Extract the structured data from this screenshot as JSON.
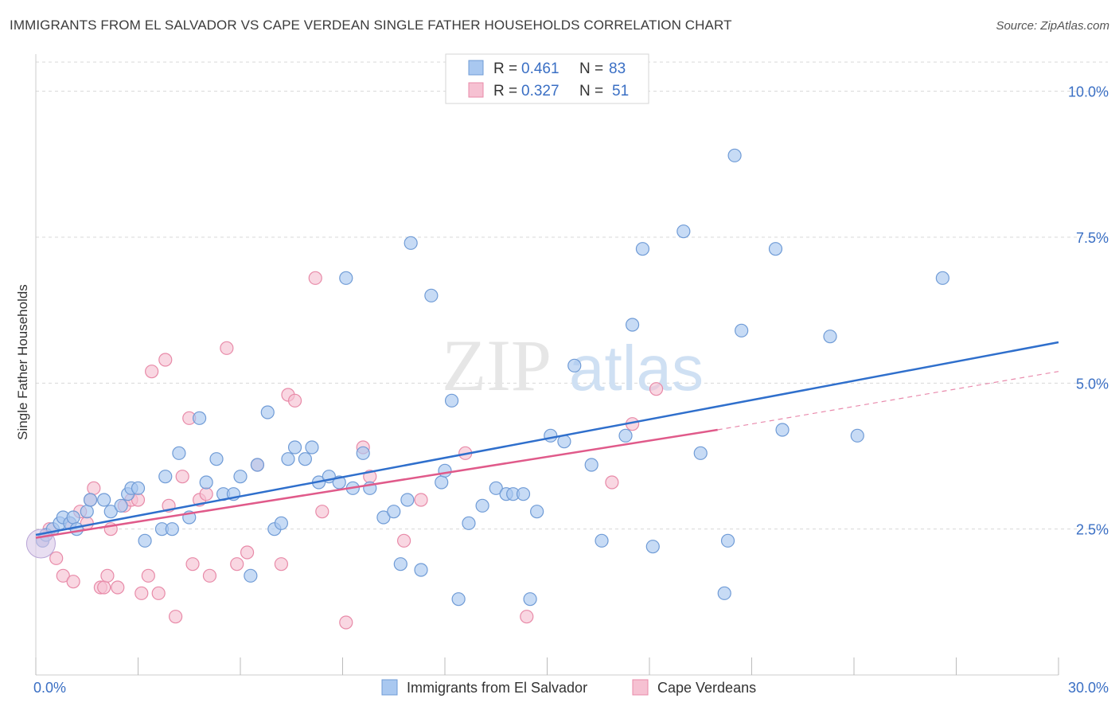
{
  "title": "IMMIGRANTS FROM EL SALVADOR VS CAPE VERDEAN SINGLE FATHER HOUSEHOLDS CORRELATION CHART",
  "source": "Source: ZipAtlas.com",
  "watermark": {
    "zip": "ZIP",
    "atlas": "atlas"
  },
  "legend": {
    "rows": [
      {
        "r_label": "R =",
        "r_value": "0.461",
        "n_label": "N =",
        "n_value": "83"
      },
      {
        "r_label": "R =",
        "r_value": "0.327",
        "n_label": "N =",
        "n_value": "51"
      }
    ]
  },
  "bottom_legend": [
    "Immigrants from El Salvador",
    "Cape Verdeans"
  ],
  "colors": {
    "blue_fill": "#a9c8f0",
    "blue_stroke": "#6f9bd6",
    "blue_line": "#2f6fcc",
    "pink_fill": "#f6c1d2",
    "pink_stroke": "#e88aa8",
    "pink_line": "#e05a8a",
    "axis_text": "#3a6fc4",
    "grid": "#d8d8d8"
  },
  "chart_data": {
    "type": "scatter",
    "xlabel": "",
    "ylabel": "Single Father Households",
    "xlim": [
      0,
      30
    ],
    "ylim": [
      0,
      10.5
    ],
    "x_ticks": [
      "0.0%",
      "30.0%"
    ],
    "y_ticks": [
      "2.5%",
      "5.0%",
      "7.5%",
      "10.0%"
    ],
    "grid": "horizontal dashed",
    "legend_position": "top-center",
    "series": [
      {
        "name": "Immigrants from El Salvador",
        "points": [
          [
            0.2,
            2.3
          ],
          [
            0.3,
            2.4
          ],
          [
            0.5,
            2.5
          ],
          [
            0.7,
            2.6
          ],
          [
            0.8,
            2.7
          ],
          [
            1.0,
            2.6
          ],
          [
            1.1,
            2.7
          ],
          [
            1.2,
            2.5
          ],
          [
            1.5,
            2.8
          ],
          [
            1.6,
            3.0
          ],
          [
            2.0,
            3.0
          ],
          [
            2.2,
            2.8
          ],
          [
            2.5,
            2.9
          ],
          [
            2.7,
            3.1
          ],
          [
            2.8,
            3.2
          ],
          [
            3.0,
            3.2
          ],
          [
            3.2,
            2.3
          ],
          [
            3.7,
            2.5
          ],
          [
            3.8,
            3.4
          ],
          [
            4.0,
            2.5
          ],
          [
            4.2,
            3.8
          ],
          [
            4.5,
            2.7
          ],
          [
            4.8,
            4.4
          ],
          [
            5.0,
            3.3
          ],
          [
            5.3,
            3.7
          ],
          [
            5.5,
            3.1
          ],
          [
            5.8,
            3.1
          ],
          [
            6.0,
            3.4
          ],
          [
            6.3,
            1.7
          ],
          [
            6.5,
            3.6
          ],
          [
            6.8,
            4.5
          ],
          [
            7.0,
            2.5
          ],
          [
            7.2,
            2.6
          ],
          [
            7.4,
            3.7
          ],
          [
            7.6,
            3.9
          ],
          [
            7.9,
            3.7
          ],
          [
            8.1,
            3.9
          ],
          [
            8.3,
            3.3
          ],
          [
            8.6,
            3.4
          ],
          [
            8.9,
            3.3
          ],
          [
            9.1,
            6.8
          ],
          [
            9.3,
            3.2
          ],
          [
            9.6,
            3.8
          ],
          [
            9.8,
            3.2
          ],
          [
            10.2,
            2.7
          ],
          [
            10.5,
            2.8
          ],
          [
            10.7,
            1.9
          ],
          [
            10.9,
            3.0
          ],
          [
            11.0,
            7.4
          ],
          [
            11.3,
            1.8
          ],
          [
            11.6,
            6.5
          ],
          [
            11.9,
            3.3
          ],
          [
            12.0,
            3.5
          ],
          [
            12.2,
            4.7
          ],
          [
            12.4,
            1.3
          ],
          [
            12.7,
            2.6
          ],
          [
            13.1,
            2.9
          ],
          [
            13.5,
            3.2
          ],
          [
            13.8,
            3.1
          ],
          [
            14.0,
            3.1
          ],
          [
            14.3,
            3.1
          ],
          [
            14.5,
            1.3
          ],
          [
            14.7,
            2.8
          ],
          [
            15.1,
            4.1
          ],
          [
            15.5,
            4.0
          ],
          [
            15.8,
            5.3
          ],
          [
            16.3,
            3.6
          ],
          [
            16.6,
            2.3
          ],
          [
            17.3,
            4.1
          ],
          [
            17.5,
            6.0
          ],
          [
            17.8,
            7.3
          ],
          [
            18.1,
            2.2
          ],
          [
            19.0,
            7.6
          ],
          [
            19.5,
            3.8
          ],
          [
            20.2,
            1.4
          ],
          [
            20.3,
            2.3
          ],
          [
            20.5,
            8.9
          ],
          [
            20.7,
            5.9
          ],
          [
            21.7,
            7.3
          ],
          [
            21.9,
            4.2
          ],
          [
            23.3,
            5.8
          ],
          [
            24.1,
            4.1
          ],
          [
            26.6,
            6.8
          ]
        ],
        "trend": {
          "x0": 0,
          "y0": 2.4,
          "x1": 30,
          "y1": 5.7
        }
      },
      {
        "name": "Cape Verdeans",
        "points": [
          [
            0.2,
            2.3
          ],
          [
            0.3,
            2.4
          ],
          [
            0.4,
            2.5
          ],
          [
            0.6,
            2.0
          ],
          [
            0.8,
            1.7
          ],
          [
            1.0,
            2.6
          ],
          [
            1.1,
            1.6
          ],
          [
            1.3,
            2.8
          ],
          [
            1.5,
            2.6
          ],
          [
            1.6,
            3.0
          ],
          [
            1.7,
            3.2
          ],
          [
            1.9,
            1.5
          ],
          [
            2.0,
            1.5
          ],
          [
            2.1,
            1.7
          ],
          [
            2.2,
            2.5
          ],
          [
            2.4,
            1.5
          ],
          [
            2.6,
            2.9
          ],
          [
            2.8,
            3.0
          ],
          [
            3.0,
            3.0
          ],
          [
            3.1,
            1.4
          ],
          [
            3.3,
            1.7
          ],
          [
            3.4,
            5.2
          ],
          [
            3.6,
            1.4
          ],
          [
            3.8,
            5.4
          ],
          [
            3.9,
            2.9
          ],
          [
            4.1,
            1.0
          ],
          [
            4.3,
            3.4
          ],
          [
            4.5,
            4.4
          ],
          [
            4.6,
            1.9
          ],
          [
            4.8,
            3.0
          ],
          [
            5.0,
            3.1
          ],
          [
            5.1,
            1.7
          ],
          [
            5.6,
            5.6
          ],
          [
            5.9,
            1.9
          ],
          [
            6.2,
            2.1
          ],
          [
            6.5,
            3.6
          ],
          [
            7.2,
            1.9
          ],
          [
            7.4,
            4.8
          ],
          [
            7.6,
            4.7
          ],
          [
            8.2,
            6.8
          ],
          [
            8.4,
            2.8
          ],
          [
            9.1,
            0.9
          ],
          [
            9.6,
            3.9
          ],
          [
            9.8,
            3.4
          ],
          [
            10.8,
            2.3
          ],
          [
            11.3,
            3.0
          ],
          [
            12.6,
            3.8
          ],
          [
            14.4,
            1.0
          ],
          [
            16.9,
            3.3
          ],
          [
            17.5,
            4.3
          ],
          [
            18.2,
            4.9
          ]
        ],
        "trend": {
          "x0": 0,
          "y0": 2.35,
          "x1": 20,
          "y1": 4.2
        },
        "trend_extension": {
          "x0": 20,
          "y0": 4.2,
          "x1": 30,
          "y1": 5.2
        }
      }
    ]
  }
}
